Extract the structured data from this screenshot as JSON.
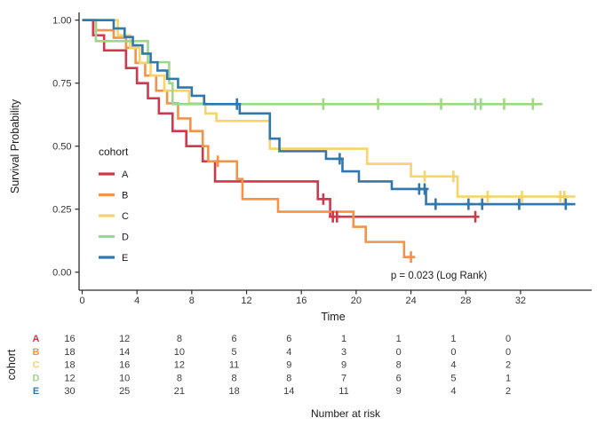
{
  "chart_data": {
    "type": "line",
    "subtype": "kaplan-meier-step",
    "xlabel": "Time",
    "ylabel": "Survival Probability",
    "annotation": "p = 0.023 (Log Rank)",
    "legend_title": "cohort",
    "legend_position": "inside-left",
    "grid": false,
    "xlim": [
      0,
      37
    ],
    "ylim": [
      0.0,
      1.0
    ],
    "xticks": [
      0,
      4,
      8,
      12,
      16,
      20,
      24,
      28,
      32
    ],
    "yticks": [
      {
        "label": "0.00",
        "value": 0.0
      },
      {
        "label": "0.25",
        "value": 0.25
      },
      {
        "label": "0.50",
        "value": 0.5
      },
      {
        "label": "0.75",
        "value": 0.75
      },
      {
        "label": "1.00",
        "value": 1.0
      }
    ],
    "series": [
      {
        "name": "A",
        "color": "#D0384D",
        "steps": [
          [
            0,
            1.0
          ],
          [
            0.8,
            0.94
          ],
          [
            1.6,
            0.88
          ],
          [
            3.2,
            0.81
          ],
          [
            4.0,
            0.75
          ],
          [
            4.8,
            0.69
          ],
          [
            5.6,
            0.63
          ],
          [
            6.6,
            0.56
          ],
          [
            7.6,
            0.5
          ],
          [
            8.8,
            0.44
          ],
          [
            9.7,
            0.36
          ],
          [
            17.2,
            0.29
          ],
          [
            18.1,
            0.22
          ]
        ],
        "end": 28.7,
        "censors": [
          [
            17.6,
            0.29
          ],
          [
            18.3,
            0.22
          ],
          [
            18.6,
            0.22
          ],
          [
            28.7,
            0.22
          ]
        ]
      },
      {
        "name": "B",
        "color": "#F39249",
        "steps": [
          [
            0,
            1.0
          ],
          [
            1.0,
            0.96
          ],
          [
            2.3,
            0.93
          ],
          [
            3.2,
            0.89
          ],
          [
            3.9,
            0.83
          ],
          [
            4.6,
            0.78
          ],
          [
            5.4,
            0.72
          ],
          [
            6.2,
            0.67
          ],
          [
            7.0,
            0.61
          ],
          [
            7.9,
            0.56
          ],
          [
            8.8,
            0.5
          ],
          [
            9.2,
            0.44
          ],
          [
            11.3,
            0.37
          ],
          [
            11.7,
            0.29
          ],
          [
            14.3,
            0.24
          ],
          [
            19.8,
            0.18
          ],
          [
            20.7,
            0.12
          ],
          [
            23.5,
            0.06
          ]
        ],
        "end": 24.3,
        "censors": [
          [
            9.9,
            0.44
          ],
          [
            24.0,
            0.06
          ]
        ]
      },
      {
        "name": "C",
        "color": "#F8D36C",
        "steps": [
          [
            0,
            1.0
          ],
          [
            2.6,
            0.94
          ],
          [
            3.5,
            0.89
          ],
          [
            4.2,
            0.83
          ],
          [
            5.0,
            0.78
          ],
          [
            6.0,
            0.72
          ],
          [
            7.8,
            0.67
          ],
          [
            9.0,
            0.63
          ],
          [
            9.8,
            0.6
          ],
          [
            13.7,
            0.49
          ],
          [
            20.8,
            0.43
          ],
          [
            24.0,
            0.38
          ],
          [
            27.4,
            0.3
          ]
        ],
        "end": 36.0,
        "censors": [
          [
            25.0,
            0.38
          ],
          [
            27.1,
            0.38
          ],
          [
            29.6,
            0.3
          ],
          [
            32.1,
            0.3
          ],
          [
            34.9,
            0.3
          ],
          [
            35.2,
            0.3
          ]
        ]
      },
      {
        "name": "D",
        "color": "#9CD78C",
        "steps": [
          [
            0,
            1.0
          ],
          [
            1.0,
            0.917
          ],
          [
            4.8,
            0.833
          ],
          [
            6.35,
            0.75
          ],
          [
            6.6,
            0.667
          ]
        ],
        "end": 33.6,
        "censors": [
          [
            17.6,
            0.667
          ],
          [
            21.6,
            0.667
          ],
          [
            26.2,
            0.667
          ],
          [
            28.7,
            0.667
          ],
          [
            29.1,
            0.667
          ],
          [
            30.8,
            0.667
          ],
          [
            32.9,
            0.667
          ]
        ]
      },
      {
        "name": "E",
        "color": "#3077AE",
        "steps": [
          [
            0,
            1.0
          ],
          [
            2.3,
            0.967
          ],
          [
            3.1,
            0.933
          ],
          [
            3.7,
            0.9
          ],
          [
            4.4,
            0.867
          ],
          [
            5.0,
            0.833
          ],
          [
            5.5,
            0.8
          ],
          [
            6.2,
            0.767
          ],
          [
            7.0,
            0.733
          ],
          [
            8.0,
            0.7
          ],
          [
            8.9,
            0.667
          ],
          [
            11.5,
            0.63
          ],
          [
            13.7,
            0.53
          ],
          [
            14.4,
            0.48
          ],
          [
            17.8,
            0.45
          ],
          [
            19.0,
            0.4
          ],
          [
            20.2,
            0.36
          ],
          [
            22.6,
            0.33
          ],
          [
            25.1,
            0.27
          ]
        ],
        "end": 36.0,
        "censors": [
          [
            11.3,
            0.667
          ],
          [
            18.8,
            0.45
          ],
          [
            24.6,
            0.33
          ],
          [
            25.0,
            0.33
          ],
          [
            25.8,
            0.27
          ],
          [
            28.2,
            0.27
          ],
          [
            29.2,
            0.27
          ],
          [
            31.9,
            0.27
          ],
          [
            35.3,
            0.27
          ]
        ]
      }
    ]
  },
  "risk_table": {
    "ylabel": "cohort",
    "xlabel": "Number at risk",
    "times": [
      0,
      4,
      8,
      12,
      16,
      20,
      24,
      28,
      32
    ],
    "rows": [
      {
        "name": "A",
        "color": "#D0384D",
        "counts": [
          16,
          12,
          8,
          6,
          6,
          1,
          1,
          1,
          0
        ]
      },
      {
        "name": "B",
        "color": "#F39249",
        "counts": [
          18,
          14,
          10,
          5,
          4,
          3,
          0,
          0,
          0
        ]
      },
      {
        "name": "C",
        "color": "#F8D36C",
        "counts": [
          18,
          16,
          12,
          11,
          9,
          9,
          8,
          4,
          2
        ]
      },
      {
        "name": "D",
        "color": "#9CD78C",
        "counts": [
          12,
          10,
          8,
          8,
          8,
          7,
          6,
          5,
          1
        ]
      },
      {
        "name": "E",
        "color": "#3077AE",
        "counts": [
          30,
          25,
          21,
          18,
          14,
          11,
          9,
          4,
          2
        ]
      }
    ]
  }
}
